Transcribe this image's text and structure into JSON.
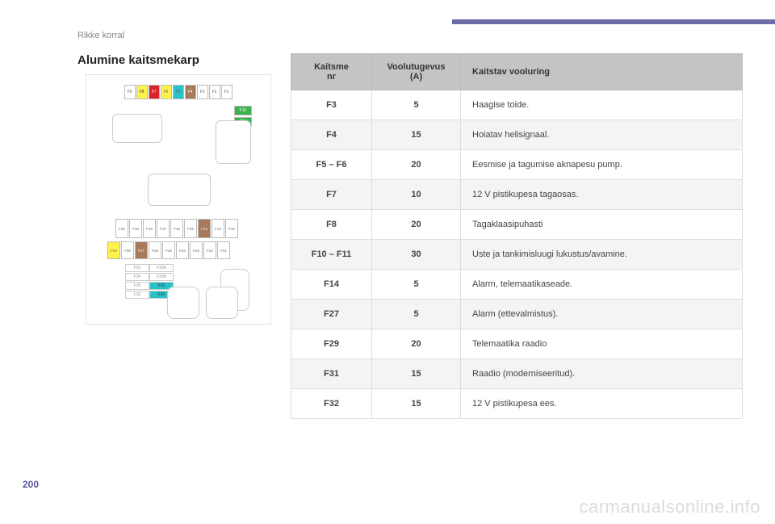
{
  "breadcrumb": "Rikke korral",
  "title": "Alumine kaitsmekarp",
  "page_number": "200",
  "watermark": "carmanualsonline.info",
  "table": {
    "headers": {
      "col1_line1": "Kaitsme",
      "col1_line2": "nr",
      "col2_line1": "Voolutugevus",
      "col2_line2": "(A)",
      "col3": "Kaitstav vooluring"
    },
    "rows": [
      {
        "num": "F3",
        "amp": "5",
        "desc": "Haagise toide."
      },
      {
        "num": "F4",
        "amp": "15",
        "desc": "Hoiatav helisignaal."
      },
      {
        "num": "F5 – F6",
        "amp": "20",
        "desc": "Eesmise ja tagumise aknapesu pump."
      },
      {
        "num": "F7",
        "amp": "10",
        "desc": "12 V pistikupesa tagaosas."
      },
      {
        "num": "F8",
        "amp": "20",
        "desc": "Tagaklaasipuhasti"
      },
      {
        "num": "F10 – F11",
        "amp": "30",
        "desc": "Uste ja tankimisluugi lukustus/avamine."
      },
      {
        "num": "F14",
        "amp": "5",
        "desc": "Alarm, telemaatikaseade."
      },
      {
        "num": "F27",
        "amp": "5",
        "desc": "Alarm (ettevalmistus)."
      },
      {
        "num": "F29",
        "amp": "20",
        "desc": "Telemaatika raadio"
      },
      {
        "num": "F31",
        "amp": "15",
        "desc": "Raadio (moderniseeritud)."
      },
      {
        "num": "F32",
        "amp": "15",
        "desc": "12 V pistikupesa ees."
      }
    ]
  },
  "diagram": {
    "row1": [
      "F9",
      "F8",
      "F7",
      "F6",
      "F5",
      "F4",
      "F3",
      "F2",
      "F1"
    ],
    "green": [
      "F10",
      "F11"
    ],
    "row2": [
      "F20",
      "F19",
      "F18",
      "F17",
      "F16",
      "F15",
      "F14",
      "F13",
      "F12"
    ],
    "row3": [
      "F29",
      "F28",
      "F27",
      "F26",
      "F25",
      "F24",
      "F23",
      "F22",
      "F21"
    ],
    "pairs": [
      [
        "F33",
        "F30A"
      ],
      [
        "F34",
        "F30B"
      ],
      [
        "F35",
        "F31"
      ],
      [
        "F36",
        "F32"
      ]
    ]
  }
}
